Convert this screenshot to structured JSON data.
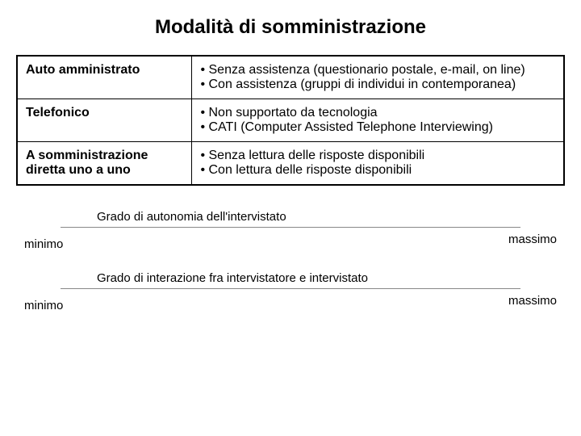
{
  "title": "Modalità di somministrazione",
  "table": {
    "rows": [
      {
        "label": "Auto amministrato",
        "items": [
          "Senza assistenza (questionario postale, e-mail, on line)",
          "Con assistenza (gruppi di individui in contemporanea)"
        ]
      },
      {
        "label": "Telefonico",
        "items": [
          "Non supportato da tecnologia",
          "CATI (Computer Assisted Telephone Interviewing)"
        ]
      },
      {
        "label": "A somministrazione diretta uno a uno",
        "items": [
          "Senza lettura delle risposte disponibili",
          "Con lettura delle risposte disponibili"
        ]
      }
    ]
  },
  "scales": [
    {
      "caption": "Grado di autonomia dell'intervistato",
      "min": "minimo",
      "max": "massimo"
    },
    {
      "caption": "Grado di interazione fra intervistatore e intervistato",
      "min": "minimo",
      "max": "massimo"
    }
  ],
  "colors": {
    "background": "#ffffff",
    "text": "#000000",
    "border": "#000000",
    "line": "#888888"
  }
}
